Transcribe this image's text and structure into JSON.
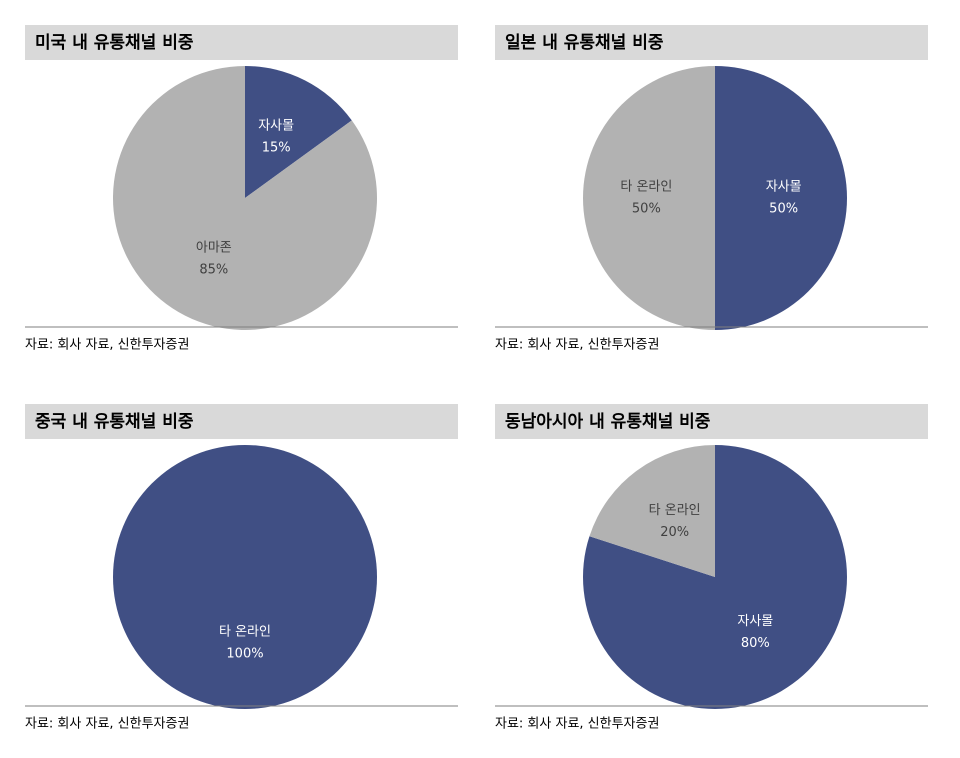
{
  "chart_data": [
    {
      "type": "pie",
      "title": "미국 내 유통채널 비중",
      "categories": [
        "자사몰",
        "아마존"
      ],
      "values": [
        15,
        85
      ],
      "value_labels": [
        "15%",
        "85%"
      ],
      "colors": [
        "#404f84",
        "#b2b2b2"
      ],
      "source": "자료: 회사 자료, 신한투자증권"
    },
    {
      "type": "pie",
      "title": "일본 내 유통채널 비중",
      "categories": [
        "자사몰",
        "타 온라인"
      ],
      "values": [
        50,
        50
      ],
      "value_labels": [
        "50%",
        "50%"
      ],
      "colors": [
        "#404f84",
        "#b2b2b2"
      ],
      "source": "자료: 회사 자료, 신한투자증권"
    },
    {
      "type": "pie",
      "title": "중국 내 유통채널 비중",
      "categories": [
        "타 온라인"
      ],
      "values": [
        100
      ],
      "value_labels": [
        "100%"
      ],
      "colors": [
        "#404f84"
      ],
      "source": "자료: 회사 자료, 신한투자증권"
    },
    {
      "type": "pie",
      "title": "동남아시아 내 유통채널 비중",
      "categories": [
        "자사몰",
        "타 온라인"
      ],
      "values": [
        80,
        20
      ],
      "value_labels": [
        "80%",
        "20%"
      ],
      "colors": [
        "#404f84",
        "#b2b2b2"
      ],
      "source": "자료: 회사 자료, 신한투자증권"
    }
  ]
}
